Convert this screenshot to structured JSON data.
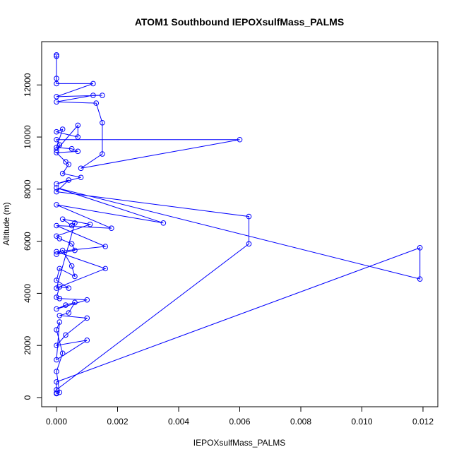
{
  "chart_data": {
    "type": "scatter",
    "title": "ATOM1 Southbound IEPOXsulfMass_PALMS",
    "xlabel": "IEPOXsulfMass_PALMS",
    "ylabel": "Altitude (m)",
    "xlim": [
      0,
      0.012
    ],
    "ylim": [
      0,
      13200
    ],
    "x_ticks": [
      0,
      0.002,
      0.004,
      0.006,
      0.008,
      0.01,
      0.012
    ],
    "x_tick_labels": [
      "0.000",
      "0.002",
      "0.004",
      "0.006",
      "0.008",
      "0.010",
      "0.012"
    ],
    "y_ticks": [
      0,
      2000,
      4000,
      6000,
      8000,
      10000,
      12000
    ],
    "y_tick_labels": [
      "0",
      "2000",
      "4000",
      "6000",
      "8000",
      "10000",
      "12000"
    ],
    "grid": false,
    "legend": "none",
    "series_color": "#0000ff",
    "series": [
      {
        "style": "points-and-lines",
        "points": [
          [
            0,
            13150
          ],
          [
            0,
            13100
          ],
          [
            0,
            12250
          ],
          [
            0,
            12050
          ],
          [
            0.0012,
            12050
          ],
          [
            0,
            11550
          ],
          [
            0.0015,
            11600
          ],
          [
            0.0012,
            11600
          ],
          [
            0,
            11350
          ],
          [
            0.0013,
            11300
          ],
          [
            0.0015,
            10550
          ],
          [
            0.0015,
            9350
          ],
          [
            0.0008,
            8800
          ],
          [
            0.006,
            9900
          ],
          [
            0,
            9900
          ],
          [
            0.0001,
            9700
          ],
          [
            0,
            9500
          ],
          [
            0.0007,
            10450
          ],
          [
            0.0007,
            10000
          ],
          [
            0,
            10200
          ],
          [
            0.0002,
            10300
          ],
          [
            0,
            9600
          ],
          [
            0.0005,
            9550
          ],
          [
            0.0007,
            9450
          ],
          [
            0,
            9400
          ],
          [
            0.0003,
            9050
          ],
          [
            0.0004,
            8950
          ],
          [
            0.0002,
            8600
          ],
          [
            0.0008,
            8450
          ],
          [
            0,
            8200
          ],
          [
            0.0004,
            8350
          ],
          [
            0,
            7900
          ],
          [
            0.0063,
            6950
          ],
          [
            0.0063,
            5900
          ],
          [
            0,
            300
          ],
          [
            0,
            600
          ],
          [
            0.0119,
            5750
          ],
          [
            0.0119,
            4550
          ],
          [
            0,
            8050
          ],
          [
            0.0035,
            6700
          ],
          [
            0,
            7400
          ],
          [
            0.0018,
            6500
          ],
          [
            0,
            6600
          ],
          [
            0.0016,
            5800
          ],
          [
            0,
            5600
          ],
          [
            0.0016,
            4950
          ],
          [
            0,
            4200
          ],
          [
            0.0006,
            6700
          ],
          [
            0.0005,
            6600
          ],
          [
            0.0002,
            6850
          ],
          [
            0.0011,
            6650
          ],
          [
            0,
            6200
          ],
          [
            0.0001,
            6100
          ],
          [
            0.0005,
            5900
          ],
          [
            0.0006,
            5650
          ],
          [
            0,
            5500
          ],
          [
            0.0002,
            5650
          ],
          [
            0.0005,
            5050
          ],
          [
            0.0006,
            4650
          ],
          [
            0.0001,
            4950
          ],
          [
            0,
            4500
          ],
          [
            0.0004,
            4200
          ],
          [
            0.0001,
            4250
          ],
          [
            0,
            3850
          ],
          [
            0.0001,
            3800
          ],
          [
            0.001,
            3750
          ],
          [
            0,
            3400
          ],
          [
            0.0003,
            3550
          ],
          [
            0.0006,
            3650
          ],
          [
            0.0004,
            3250
          ],
          [
            0.0001,
            3150
          ],
          [
            0.001,
            3050
          ],
          [
            0.0003,
            2400
          ],
          [
            0,
            2000
          ],
          [
            0.001,
            2200
          ],
          [
            0,
            1450
          ],
          [
            0.0001,
            2900
          ],
          [
            0,
            2600
          ],
          [
            0.0002,
            1700
          ],
          [
            0,
            1000
          ],
          [
            0.0001,
            200
          ],
          [
            0,
            150
          ],
          [
            0,
            180
          ]
        ]
      }
    ]
  }
}
